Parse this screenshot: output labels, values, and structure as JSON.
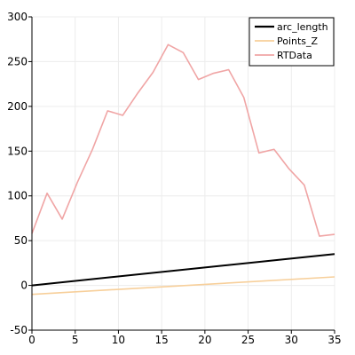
{
  "chart_data": {
    "type": "line",
    "xlim": [
      0,
      35
    ],
    "ylim": [
      -50,
      300
    ],
    "x_ticks": [
      0,
      5,
      10,
      15,
      20,
      25,
      30,
      35
    ],
    "y_ticks": [
      -50,
      0,
      50,
      100,
      150,
      200,
      250,
      300
    ],
    "x_tick_labels": [
      "0",
      "5",
      "10",
      "15",
      "20",
      "25",
      "30",
      "35"
    ],
    "y_tick_labels": [
      "-50",
      "0",
      "50",
      "100",
      "150",
      "200",
      "250",
      "300"
    ],
    "grid": true,
    "legend_position": "top-right",
    "series": [
      {
        "name": "arc_length",
        "color": "#000000",
        "x": [
          0,
          35
        ],
        "y": [
          0,
          35
        ]
      },
      {
        "name": "Points_Z",
        "color": "#f7cf9a",
        "x": [
          0,
          35
        ],
        "y": [
          -10,
          9.5
        ]
      },
      {
        "name": "RTData",
        "color": "#f0a5a5",
        "x": [
          0,
          1.75,
          3.5,
          5.25,
          7,
          8.75,
          10.5,
          12.25,
          14,
          15.75,
          17.5,
          19.25,
          21,
          22.75,
          24.5,
          26.25,
          28,
          29.75,
          31.5,
          33.25,
          35
        ],
        "y": [
          58,
          103,
          74,
          115,
          152,
          195,
          190,
          215,
          238,
          269,
          260,
          230,
          237,
          241,
          210,
          148,
          152,
          130,
          112,
          55,
          57
        ]
      }
    ]
  }
}
